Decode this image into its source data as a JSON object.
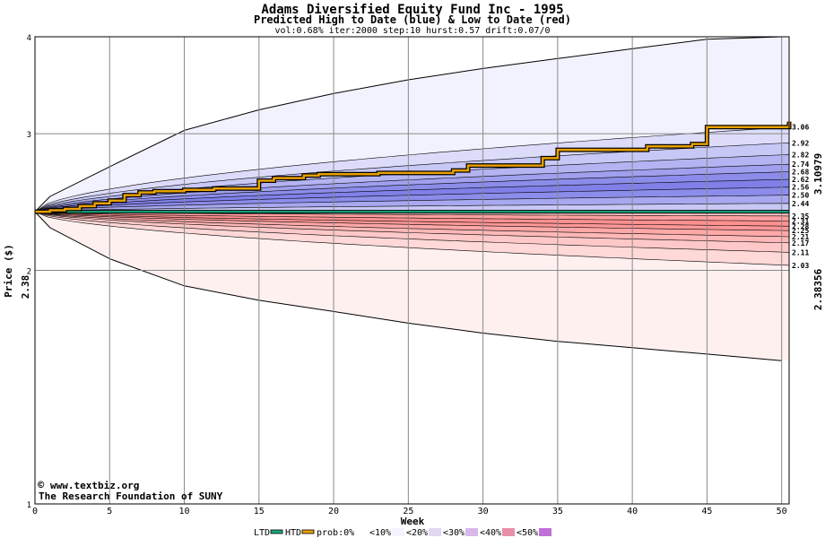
{
  "chart_data": {
    "type": "area",
    "title": "Adams Diversified Equity Fund Inc - 1995",
    "subtitle": "Predicted High to Date (blue) &  Low to Date (red)",
    "params": "vol:0.68% iter:2000 step:10 hurst:0.57 drift:0.07/0",
    "xlabel": "Week",
    "ylabel": "Price ($)",
    "xlim": [
      0,
      50.5
    ],
    "ylim": [
      1,
      4
    ],
    "y_scale": "log",
    "x_ticks": [
      0,
      5,
      10,
      15,
      20,
      25,
      30,
      35,
      40,
      45,
      50
    ],
    "y_ticks": [
      1,
      2,
      3,
      4
    ],
    "start_price": 2.38,
    "start_label": "2.38",
    "htd_final": 3.10979,
    "htd_final_label": "3.10979",
    "ltd_final": 2.38356,
    "ltd_final_label": "2.38356",
    "high_envelope": {
      "x": [
        0,
        1,
        5,
        10,
        15,
        20,
        25,
        30,
        35,
        40,
        45,
        50
      ],
      "y": [
        2.38,
        2.49,
        2.72,
        3.03,
        3.22,
        3.38,
        3.52,
        3.64,
        3.75,
        3.86,
        3.97,
        4.0
      ]
    },
    "low_envelope": {
      "x": [
        0,
        1,
        5,
        10,
        15,
        20,
        25,
        30,
        35,
        40,
        45,
        50
      ],
      "y": [
        2.38,
        2.27,
        2.07,
        1.91,
        1.83,
        1.77,
        1.71,
        1.66,
        1.62,
        1.59,
        1.56,
        1.53
      ]
    },
    "blue_bands": [
      {
        "label": "2.44",
        "y_end": 2.44
      },
      {
        "label": "2.50",
        "y_end": 2.5
      },
      {
        "label": "2.56",
        "y_end": 2.56
      },
      {
        "label": "2.62",
        "y_end": 2.62
      },
      {
        "label": "2.68",
        "y_end": 2.68
      },
      {
        "label": "2.74",
        "y_end": 2.74
      },
      {
        "label": "2.82",
        "y_end": 2.82
      },
      {
        "label": "2.92",
        "y_end": 2.92
      },
      {
        "label": "3.06",
        "y_end": 3.06
      }
    ],
    "red_bands": [
      {
        "label": "2.35",
        "y_end": 2.35
      },
      {
        "label": "2.31",
        "y_end": 2.315
      },
      {
        "label": "2.28",
        "y_end": 2.28
      },
      {
        "label": "2.25",
        "y_end": 2.25
      },
      {
        "label": "2.21",
        "y_end": 2.21
      },
      {
        "label": "2.17",
        "y_end": 2.17
      },
      {
        "label": "2.11",
        "y_end": 2.11
      },
      {
        "label": "2.03",
        "y_end": 2.03
      }
    ],
    "htd_series": {
      "name": "HTD",
      "x": [
        0,
        1,
        2,
        3,
        4,
        5,
        6,
        7,
        8,
        10,
        12,
        14,
        15,
        16,
        18,
        19,
        20,
        23,
        28,
        29,
        34,
        35,
        40,
        41,
        44,
        45,
        50,
        50.5
      ],
      "y": [
        2.38,
        2.39,
        2.4,
        2.42,
        2.44,
        2.46,
        2.5,
        2.52,
        2.53,
        2.54,
        2.55,
        2.55,
        2.61,
        2.63,
        2.65,
        2.66,
        2.66,
        2.67,
        2.69,
        2.73,
        2.79,
        2.86,
        2.86,
        2.89,
        2.91,
        3.06,
        3.06,
        3.11
      ]
    },
    "ltd_series": {
      "name": "LTD",
      "x": [
        0,
        50.5
      ],
      "y": [
        2.38,
        2.38
      ]
    },
    "legend": {
      "position": "bottom",
      "items": [
        {
          "label": "LTD",
          "color": "#1aa87f"
        },
        {
          "label": "HTD",
          "color": "#e8a000"
        },
        {
          "label": "prob:0%",
          "color": "#ffffff"
        },
        {
          "label": "<10%",
          "color": "#f4f4ff"
        },
        {
          "label": "<20%",
          "color": "#e2d8f2"
        },
        {
          "label": "<30%",
          "color": "#d8b8e8"
        },
        {
          "label": "<40%",
          "color": "#e890a8"
        },
        {
          "label": "<50%",
          "color": "#c070d8"
        }
      ]
    },
    "watermark": {
      "line1": "www.textbiz.org",
      "line2": "The Research Foundation of SUNY",
      "symbol": "©"
    },
    "colors": {
      "grid": "#888888",
      "htd": "#e8a000",
      "ltd": "#1aa87f",
      "ltd_label": "#1a8a3a",
      "htd_label": "#9a6a00",
      "watermark": "#000066"
    }
  }
}
